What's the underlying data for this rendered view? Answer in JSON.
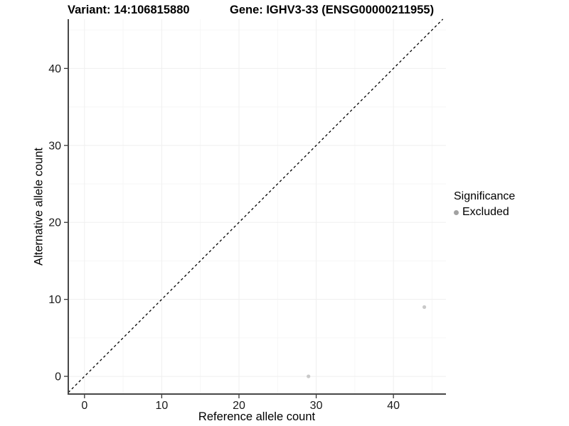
{
  "header": {
    "title_left": "Variant: 14:106815880",
    "title_right": "Gene: IGHV3-33 (ENSG00000211955)"
  },
  "chart_data": {
    "type": "scatter",
    "title": "Variant: 14:106815880   Gene: IGHV3-33 (ENSG00000211955)",
    "xlabel": "Reference allele count",
    "ylabel": "Alternative allele count",
    "xlim": [
      -2.1,
      46.8
    ],
    "ylim": [
      -2.3,
      46.4
    ],
    "xticks": [
      0,
      10,
      20,
      30,
      40
    ],
    "yticks": [
      0,
      10,
      20,
      30,
      40
    ],
    "minor_xticks": [
      5,
      15,
      25,
      35,
      45
    ],
    "minor_yticks": [
      5,
      15,
      25,
      35,
      45
    ],
    "grid": true,
    "series": [
      {
        "name": "Excluded",
        "point_color": "#c9c9c9",
        "points": [
          {
            "x": 29,
            "y": 0
          },
          {
            "x": 44,
            "y": 9
          }
        ]
      }
    ],
    "reference_line": {
      "type": "identity",
      "style": "dashed",
      "color": "#000000",
      "note": "y = x diagonal"
    },
    "legend": {
      "title": "Significance",
      "position": "right",
      "items": [
        {
          "label": "Excluded",
          "color": "#a2a2a2"
        }
      ]
    },
    "colors": {
      "major_grid": "#efefef",
      "minor_grid": "#f6f6f6",
      "axis_line": "#474747",
      "tick_mark": "#333333",
      "tick_label": "#1a1a1a",
      "background": "#ffffff"
    }
  }
}
